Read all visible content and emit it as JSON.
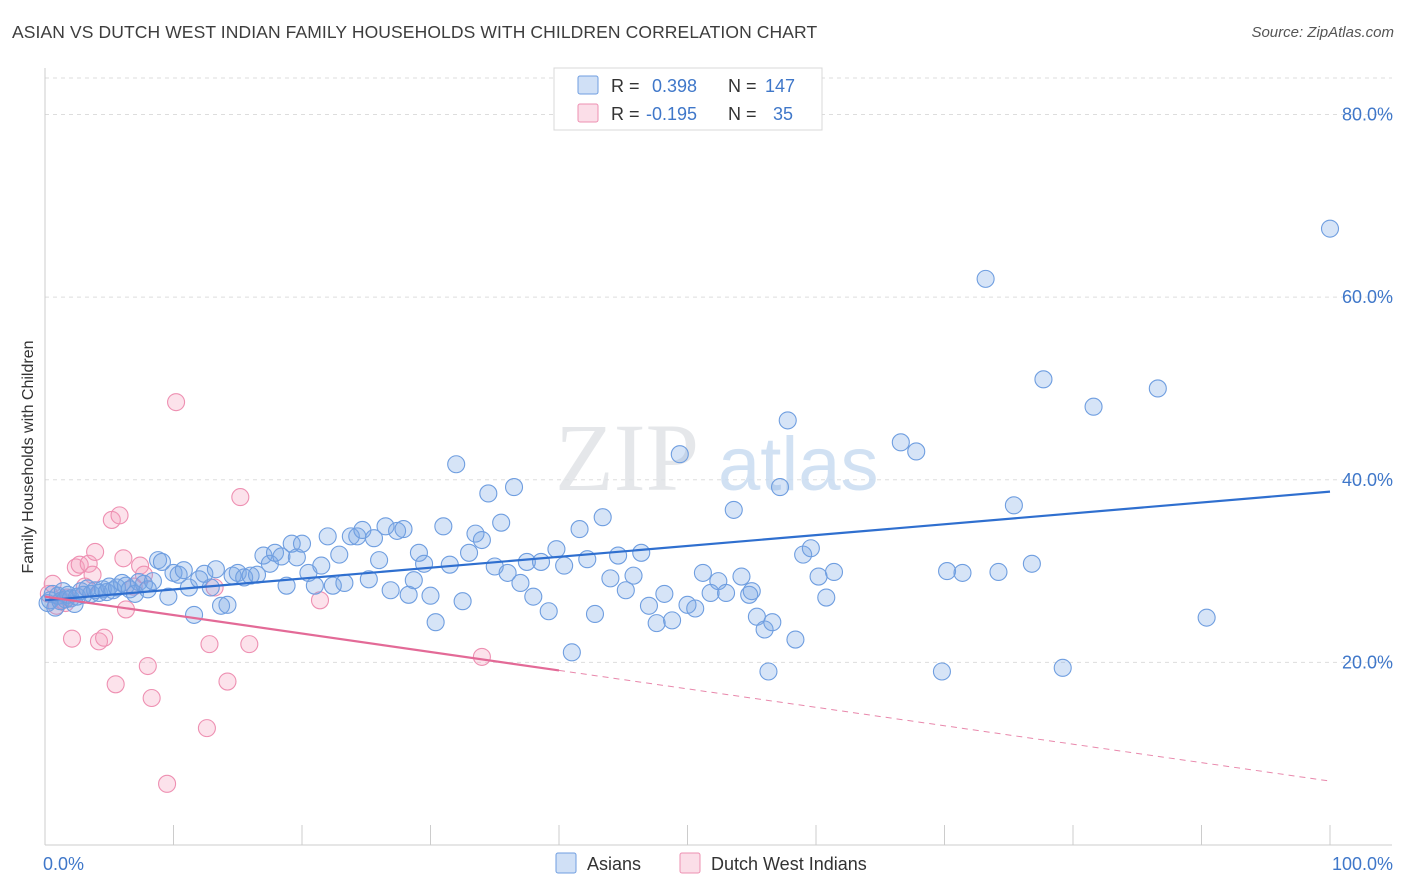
{
  "title": "ASIAN VS DUTCH WEST INDIAN FAMILY HOUSEHOLDS WITH CHILDREN CORRELATION CHART",
  "source": "Source: ZipAtlas.com",
  "watermark": {
    "zip": "ZIP",
    "atlas": "atlas"
  },
  "colors": {
    "asian_fill": "rgba(120,166,230,0.30)",
    "asian_stroke": "#6f9ee0",
    "asian_line": "#2f6fcf",
    "dutch_fill": "rgba(244,160,190,0.30)",
    "dutch_stroke": "#ee90b2",
    "dutch_line": "#e36a97",
    "axis_label": "#3f77c9",
    "grid": "#dddddd"
  },
  "legend_stats": {
    "rows": [
      {
        "r_label": "R =",
        "r_value": "0.398",
        "n_label": "N =",
        "n_value": "147"
      },
      {
        "r_label": "R =",
        "r_value": "-0.195",
        "n_label": "N =",
        "n_value": "35"
      }
    ]
  },
  "chart_data": {
    "type": "scatter",
    "title": "ASIAN VS DUTCH WEST INDIAN FAMILY HOUSEHOLDS WITH CHILDREN CORRELATION CHART",
    "xlabel": "",
    "ylabel": "Family Households with Children",
    "xlim": [
      0,
      100
    ],
    "ylim": [
      0,
      84
    ],
    "x_tick_labels": [
      "0.0%",
      "100.0%"
    ],
    "y_ticks": [
      20,
      40,
      60,
      80
    ],
    "y_tick_labels": [
      "20.0%",
      "40.0%",
      "60.0%",
      "80.0%"
    ],
    "grid": true,
    "legend_position": "bottom-center",
    "series": [
      {
        "name": "Asians",
        "trend": {
          "x0": 0,
          "y0": 26.8,
          "x1": 100,
          "y1": 38.7,
          "dashed_from": null
        },
        "points": [
          [
            0.2,
            26.5
          ],
          [
            0.4,
            26.8
          ],
          [
            0.6,
            27.5
          ],
          [
            0.8,
            26.0
          ],
          [
            1.0,
            27.3
          ],
          [
            1.2,
            26.7
          ],
          [
            1.4,
            27.8
          ],
          [
            1.6,
            26.9
          ],
          [
            1.8,
            27.4
          ],
          [
            2.0,
            27.0
          ],
          [
            2.3,
            26.4
          ],
          [
            2.5,
            27.2
          ],
          [
            2.8,
            27.8
          ],
          [
            3.0,
            27.4
          ],
          [
            3.3,
            28.1
          ],
          [
            3.6,
            27.5
          ],
          [
            3.9,
            27.9
          ],
          [
            4.2,
            27.6
          ],
          [
            4.5,
            28.0
          ],
          [
            4.8,
            27.7
          ],
          [
            5.0,
            28.3
          ],
          [
            5.3,
            27.9
          ],
          [
            5.6,
            28.2
          ],
          [
            6.0,
            28.7
          ],
          [
            6.3,
            28.4
          ],
          [
            6.6,
            28.0
          ],
          [
            7.0,
            27.5
          ],
          [
            7.3,
            28.8
          ],
          [
            7.7,
            28.6
          ],
          [
            8.0,
            28.0
          ],
          [
            8.4,
            28.9
          ],
          [
            8.8,
            31.2
          ],
          [
            9.1,
            31.0
          ],
          [
            9.6,
            27.2
          ],
          [
            10.0,
            29.8
          ],
          [
            10.4,
            29.6
          ],
          [
            10.8,
            30.1
          ],
          [
            11.2,
            28.2
          ],
          [
            11.6,
            25.2
          ],
          [
            12.0,
            29.1
          ],
          [
            12.4,
            29.7
          ],
          [
            12.9,
            28.2
          ],
          [
            13.3,
            30.2
          ],
          [
            13.7,
            26.2
          ],
          [
            14.2,
            26.3
          ],
          [
            14.6,
            29.5
          ],
          [
            15.0,
            29.8
          ],
          [
            15.5,
            29.3
          ],
          [
            16.0,
            29.5
          ],
          [
            16.5,
            29.6
          ],
          [
            17.0,
            31.7
          ],
          [
            17.5,
            30.8
          ],
          [
            17.9,
            32.0
          ],
          [
            18.4,
            31.6
          ],
          [
            18.8,
            28.4
          ],
          [
            19.2,
            33.0
          ],
          [
            19.6,
            31.5
          ],
          [
            20.0,
            33.0
          ],
          [
            20.5,
            29.8
          ],
          [
            21.0,
            28.4
          ],
          [
            21.5,
            30.6
          ],
          [
            22.0,
            33.8
          ],
          [
            22.4,
            28.4
          ],
          [
            22.9,
            31.8
          ],
          [
            23.3,
            28.7
          ],
          [
            23.8,
            33.8
          ],
          [
            24.3,
            33.8
          ],
          [
            24.7,
            34.5
          ],
          [
            25.2,
            29.1
          ],
          [
            25.6,
            33.6
          ],
          [
            26.0,
            31.2
          ],
          [
            26.5,
            34.9
          ],
          [
            26.9,
            27.9
          ],
          [
            27.4,
            34.4
          ],
          [
            27.9,
            34.6
          ],
          [
            28.3,
            27.4
          ],
          [
            28.7,
            29.0
          ],
          [
            29.1,
            32.0
          ],
          [
            29.5,
            30.8
          ],
          [
            30.0,
            27.3
          ],
          [
            30.4,
            24.4
          ],
          [
            31.0,
            34.9
          ],
          [
            31.5,
            30.7
          ],
          [
            32.0,
            41.7
          ],
          [
            32.5,
            26.7
          ],
          [
            33.0,
            32.0
          ],
          [
            33.5,
            34.1
          ],
          [
            34.0,
            33.4
          ],
          [
            34.5,
            38.5
          ],
          [
            35.0,
            30.5
          ],
          [
            35.5,
            35.3
          ],
          [
            36.0,
            29.8
          ],
          [
            36.5,
            39.2
          ],
          [
            37.0,
            28.7
          ],
          [
            37.5,
            31.0
          ],
          [
            38.0,
            27.2
          ],
          [
            38.6,
            31.0
          ],
          [
            39.2,
            25.6
          ],
          [
            39.8,
            32.4
          ],
          [
            40.4,
            30.6
          ],
          [
            41.0,
            21.1
          ],
          [
            41.6,
            34.6
          ],
          [
            42.2,
            31.3
          ],
          [
            42.8,
            25.3
          ],
          [
            43.4,
            35.9
          ],
          [
            44.0,
            29.2
          ],
          [
            44.6,
            31.7
          ],
          [
            45.2,
            27.9
          ],
          [
            45.8,
            29.5
          ],
          [
            46.4,
            32.0
          ],
          [
            47.0,
            26.2
          ],
          [
            47.6,
            24.3
          ],
          [
            48.2,
            27.5
          ],
          [
            48.8,
            24.6
          ],
          [
            49.4,
            42.8
          ],
          [
            50.0,
            26.3
          ],
          [
            50.6,
            25.9
          ],
          [
            51.2,
            29.8
          ],
          [
            51.8,
            27.6
          ],
          [
            52.4,
            28.9
          ],
          [
            53.0,
            27.6
          ],
          [
            53.6,
            36.7
          ],
          [
            54.2,
            29.4
          ],
          [
            54.8,
            27.4
          ],
          [
            55.4,
            25.0
          ],
          [
            56.0,
            23.6
          ],
          [
            56.6,
            24.4
          ],
          [
            57.2,
            39.2
          ],
          [
            57.8,
            46.5
          ],
          [
            58.4,
            22.5
          ],
          [
            59.0,
            31.8
          ],
          [
            59.6,
            32.5
          ],
          [
            60.2,
            29.4
          ],
          [
            60.8,
            27.1
          ],
          [
            61.4,
            29.9
          ],
          [
            66.6,
            44.1
          ],
          [
            67.8,
            43.1
          ],
          [
            69.8,
            19.0
          ],
          [
            70.2,
            30.0
          ],
          [
            71.4,
            29.8
          ],
          [
            74.2,
            29.9
          ],
          [
            75.4,
            37.2
          ],
          [
            76.8,
            30.8
          ],
          [
            79.2,
            19.4
          ],
          [
            90.4,
            24.9
          ],
          [
            55.0,
            27.8
          ],
          [
            56.3,
            19.0
          ],
          [
            73.2,
            62.0
          ],
          [
            77.7,
            51.0
          ],
          [
            81.6,
            48.0
          ],
          [
            86.6,
            50.0
          ],
          [
            100.0,
            67.5
          ]
        ]
      },
      {
        "name": "Dutch West Indians",
        "trend": {
          "x0": 0,
          "y0": 27.2,
          "x1": 100,
          "y1": 7.0,
          "dashed_from": 40
        },
        "points": [
          [
            0.3,
            27.5
          ],
          [
            0.6,
            28.6
          ],
          [
            0.9,
            26.2
          ],
          [
            1.3,
            26.8
          ],
          [
            1.7,
            27.1
          ],
          [
            2.1,
            22.6
          ],
          [
            2.4,
            30.4
          ],
          [
            2.7,
            30.7
          ],
          [
            3.1,
            28.3
          ],
          [
            3.4,
            30.8
          ],
          [
            3.7,
            29.6
          ],
          [
            3.9,
            32.1
          ],
          [
            4.2,
            22.3
          ],
          [
            4.6,
            22.7
          ],
          [
            5.2,
            35.6
          ],
          [
            5.5,
            17.6
          ],
          [
            5.8,
            36.1
          ],
          [
            6.1,
            31.4
          ],
          [
            6.3,
            25.8
          ],
          [
            6.9,
            28.3
          ],
          [
            7.4,
            30.6
          ],
          [
            7.7,
            29.6
          ],
          [
            8.0,
            19.6
          ],
          [
            8.3,
            16.1
          ],
          [
            9.5,
            6.7
          ],
          [
            10.2,
            48.5
          ],
          [
            12.6,
            12.8
          ],
          [
            12.8,
            22.0
          ],
          [
            13.2,
            28.2
          ],
          [
            14.2,
            17.9
          ],
          [
            15.2,
            38.1
          ],
          [
            15.9,
            22.0
          ],
          [
            21.4,
            26.8
          ],
          [
            34.0,
            20.6
          ],
          [
            1.6,
            26.5
          ]
        ]
      }
    ]
  }
}
